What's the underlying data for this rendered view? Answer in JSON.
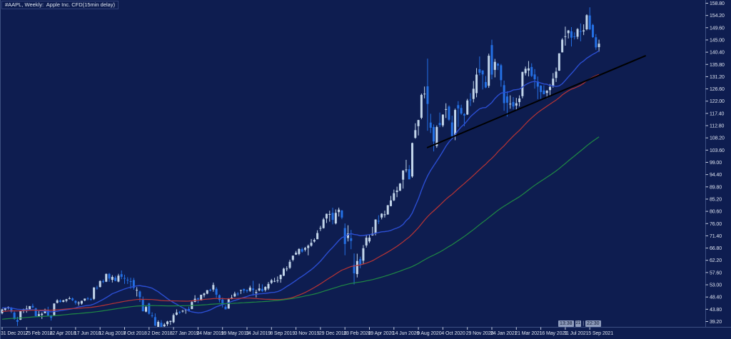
{
  "header": {
    "title": "#AAPL, Weekly:  Apple Inc. CFD(15min delay)"
  },
  "session_bar": {
    "start_time": "13:38",
    "icon": "21",
    "separator": "|",
    "end_time": "22:30"
  },
  "colors": {
    "background": "#0e1d50",
    "frame": "#3d4f82",
    "left_border": "#3c5080",
    "axis_text": "#dde3f0",
    "tick": "#c7cfe2",
    "candle_up": "#c2d5ea",
    "candle_down": "#2470e4",
    "ma_fast": "#2b4ed2",
    "ma_medium": "#b93434",
    "ma_slow": "#1f8a44",
    "trend_line": "#000000",
    "session_box_bg": "#8e9cbc",
    "session_box_text": "#0c1430"
  },
  "chart_data": {
    "type": "candlestick",
    "symbol": "#AAPL",
    "timeframe": "Weekly",
    "description": "Apple Inc. CFD(15min delay)",
    "grid": false,
    "legend_position": "none",
    "y_axis": {
      "side": "right",
      "max_label_value": 158.8,
      "min_label_value": 39.2,
      "step": 4.6,
      "labels": [
        "158.80",
        "154.20",
        "149.60",
        "145.00",
        "140.40",
        "135.80",
        "131.20",
        "126.60",
        "122.00",
        "117.40",
        "112.80",
        "108.20",
        "103.60",
        "99.00",
        "94.40",
        "89.80",
        "85.20",
        "80.60",
        "76.00",
        "71.40",
        "66.80",
        "62.20",
        "57.60",
        "53.00",
        "48.40",
        "43.80",
        "39.20"
      ]
    },
    "x_axis": {
      "side": "bottom",
      "label_every_weeks": 8,
      "labels": [
        "31 Dec 2017",
        "25 Feb 2018",
        "22 Apr 2018",
        "17 Jun 2018",
        "12 Aug 2018",
        "7 Oct 2018",
        "2 Dec 2018",
        "27 Jan 2019",
        "24 Mar 2019",
        "19 May 2019",
        "14 Jul 2019",
        "8 Sep 2019",
        "3 Nov 2019",
        "29 Dec 2019",
        "23 Feb 2020",
        "19 Apr 2020",
        "14 Jun 2020",
        "9 Aug 2020",
        "4 Oct 2020",
        "29 Nov 2020",
        "24 Jan 2021",
        "21 Mar 2021",
        "16 May 2021",
        "11 Jul 2021",
        "5 Sep 2021"
      ]
    },
    "candles_ohlc": [
      [
        42.31,
        43.98,
        41.93,
        43.75
      ],
      [
        43.59,
        44.53,
        43.28,
        44.27
      ],
      [
        44.47,
        44.85,
        43.77,
        44.62
      ],
      [
        44.33,
        44.62,
        42.36,
        42.88
      ],
      [
        42.54,
        43.0,
        39.85,
        40.13
      ],
      [
        39.78,
        40.97,
        37.56,
        39.1
      ],
      [
        39.88,
        43.34,
        39.76,
        43.24
      ],
      [
        43.27,
        44.02,
        42.38,
        43.88
      ],
      [
        44.0,
        45.15,
        42.51,
        44.05
      ],
      [
        43.8,
        45.0,
        43.65,
        44.99
      ],
      [
        45.07,
        45.88,
        44.24,
        44.51
      ],
      [
        44.11,
        44.4,
        41.12,
        41.23
      ],
      [
        41.29,
        43.09,
        41.08,
        41.95
      ],
      [
        41.66,
        42.61,
        40.16,
        42.1
      ],
      [
        42.32,
        44.03,
        42.25,
        43.68
      ],
      [
        43.6,
        44.74,
        41.35,
        41.43
      ],
      [
        41.46,
        41.73,
        39.56,
        40.58
      ],
      [
        41.6,
        46.06,
        41.32,
        45.96
      ],
      [
        46.21,
        47.59,
        46.0,
        47.15
      ],
      [
        47.09,
        47.51,
        46.31,
        46.58
      ],
      [
        46.6,
        47.36,
        46.41,
        47.15
      ],
      [
        47.0,
        47.71,
        46.44,
        47.56
      ],
      [
        47.73,
        48.55,
        47.52,
        47.92
      ],
      [
        47.88,
        48.22,
        46.89,
        47.2
      ],
      [
        46.95,
        47.19,
        45.57,
        46.23
      ],
      [
        46.28,
        46.79,
        45.18,
        46.28
      ],
      [
        45.95,
        47.02,
        45.54,
        46.99
      ],
      [
        47.11,
        47.85,
        46.81,
        47.8
      ],
      [
        47.89,
        48.41,
        47.17,
        47.87
      ],
      [
        47.66,
        48.09,
        47.02,
        47.57
      ],
      [
        47.7,
        52.1,
        47.32,
        51.99
      ],
      [
        51.9,
        52.67,
        51.17,
        51.88
      ],
      [
        52.16,
        54.66,
        52.02,
        54.4
      ],
      [
        54.3,
        54.97,
        53.62,
        54.04
      ],
      [
        54.16,
        57.22,
        54.03,
        57.09
      ],
      [
        57.1,
        57.42,
        54.12,
        55.33
      ],
      [
        54.86,
        56.61,
        53.86,
        55.96
      ],
      [
        55.68,
        56.37,
        54.31,
        54.47
      ],
      [
        54.2,
        57.12,
        53.95,
        56.44
      ],
      [
        56.99,
        58.37,
        55.11,
        56.0
      ],
      [
        55.55,
        56.81,
        53.33,
        55.53
      ],
      [
        54.92,
        55.84,
        53.3,
        54.83
      ],
      [
        54.33,
        55.66,
        51.52,
        54.1
      ],
      [
        54.77,
        55.59,
        51.14,
        51.87
      ],
      [
        51.07,
        52.09,
        48.61,
        51.11
      ],
      [
        50.48,
        50.85,
        46.56,
        48.38
      ],
      [
        47.59,
        48.58,
        42.96,
        43.07
      ],
      [
        42.91,
        45.25,
        42.65,
        44.65
      ],
      [
        45.97,
        46.24,
        41.82,
        42.12
      ],
      [
        41.5,
        42.66,
        40.68,
        41.37
      ],
      [
        40.85,
        42.25,
        37.41,
        37.68
      ],
      [
        37.04,
        39.63,
        36.65,
        39.06
      ],
      [
        38.72,
        39.71,
        35.5,
        36.98
      ],
      [
        37.39,
        38.63,
        36.66,
        38.07
      ],
      [
        38.22,
        39.47,
        37.51,
        39.21
      ],
      [
        39.06,
        39.53,
        37.93,
        39.44
      ],
      [
        38.95,
        42.25,
        38.53,
        41.63
      ],
      [
        41.74,
        43.77,
        41.48,
        42.6
      ],
      [
        42.77,
        43.19,
        42.08,
        42.6
      ],
      [
        42.95,
        43.57,
        42.57,
        43.24
      ],
      [
        43.57,
        43.95,
        42.12,
        43.74
      ],
      [
        43.92,
        44.78,
        42.88,
        43.23
      ],
      [
        43.87,
        46.83,
        43.84,
        46.53
      ],
      [
        46.55,
        49.08,
        46.45,
        47.76
      ],
      [
        47.88,
        48.22,
        46.15,
        47.49
      ],
      [
        47.1,
        49.27,
        47.1,
        49.25
      ],
      [
        49.11,
        50.03,
        48.28,
        49.72
      ],
      [
        49.65,
        51.04,
        49.45,
        50.97
      ],
      [
        51.1,
        51.49,
        50.53,
        51.08
      ],
      [
        51.22,
        53.83,
        50.41,
        52.94
      ],
      [
        51.47,
        52.12,
        48.15,
        49.29
      ],
      [
        49.09,
        49.39,
        46.35,
        47.25
      ],
      [
        47.46,
        48.12,
        44.45,
        45.64
      ],
      [
        44.73,
        45.37,
        43.75,
        43.77
      ],
      [
        44.06,
        47.98,
        44.02,
        47.54
      ],
      [
        47.95,
        49.2,
        47.57,
        48.19
      ],
      [
        48.63,
        50.39,
        48.4,
        49.69
      ],
      [
        49.67,
        50.25,
        48.82,
        49.48
      ],
      [
        50.79,
        51.11,
        49.54,
        51.06
      ],
      [
        51.45,
        51.53,
        49.88,
        50.83
      ],
      [
        51.02,
        51.27,
        50.04,
        50.65
      ],
      [
        50.77,
        52.66,
        50.34,
        51.94
      ],
      [
        51.61,
        54.51,
        48.92,
        51.01
      ],
      [
        49.9,
        51.18,
        48.24,
        50.25
      ],
      [
        50.87,
        53.41,
        50.55,
        51.63
      ],
      [
        51.47,
        53.19,
        50.25,
        50.66
      ],
      [
        51.03,
        52.44,
        50.44,
        52.19
      ],
      [
        51.61,
        54.05,
        51.06,
        53.32
      ],
      [
        53.71,
        55.2,
        53.26,
        54.69
      ],
      [
        54.43,
        55.63,
        54.0,
        54.43
      ],
      [
        54.64,
        56.15,
        53.78,
        54.72
      ],
      [
        55.13,
        56.87,
        53.78,
        56.75
      ],
      [
        56.41,
        59.41,
        56.26,
        59.05
      ],
      [
        58.96,
        59.94,
        58.08,
        59.1
      ],
      [
        59.38,
        62.44,
        58.94,
        61.65
      ],
      [
        62.38,
        64.01,
        61.81,
        63.96
      ],
      [
        64.33,
        65.72,
        64.21,
        65.04
      ],
      [
        64.57,
        66.72,
        64.09,
        66.44
      ],
      [
        66.39,
        67.0,
        65.09,
        65.45
      ],
      [
        66.2,
        67.24,
        65.52,
        66.81
      ],
      [
        66.82,
        68.14,
        64.07,
        67.68
      ],
      [
        67.7,
        70.2,
        67.32,
        68.79
      ],
      [
        69.25,
        70.44,
        68.86,
        69.86
      ],
      [
        70.13,
        73.49,
        70.13,
        72.45
      ],
      [
        74.06,
        75.14,
        73.19,
        74.36
      ],
      [
        74.29,
        78.17,
        74.13,
        77.58
      ],
      [
        77.91,
        79.75,
        76.22,
        79.68
      ],
      [
        79.3,
        80.85,
        76.72,
        79.58
      ],
      [
        80.06,
        81.96,
        75.72,
        77.38
      ],
      [
        76.07,
        81.31,
        75.69,
        80.01
      ],
      [
        80.32,
        82.0,
        78.65,
        81.24
      ],
      [
        80.88,
        81.14,
        77.63,
        78.26
      ],
      [
        74.32,
        76.04,
        64.09,
        68.34
      ],
      [
        70.57,
        75.36,
        69.28,
        72.26
      ],
      [
        70.5,
        73.63,
        66.36,
        69.49
      ],
      [
        60.49,
        64.77,
        53.15,
        57.31
      ],
      [
        57.02,
        64.67,
        55.76,
        61.94
      ],
      [
        62.69,
        63.57,
        59.22,
        60.35
      ],
      [
        62.06,
        67.93,
        60.7,
        66.73
      ],
      [
        67.78,
        71.76,
        66.97,
        70.7
      ],
      [
        69.3,
        71.74,
        68.71,
        70.74
      ],
      [
        71.56,
        74.75,
        71.46,
        72.27
      ],
      [
        72.48,
        77.59,
        71.58,
        77.53
      ],
      [
        77.03,
        79.12,
        75.8,
        76.93
      ],
      [
        78.29,
        79.88,
        77.58,
        79.72
      ],
      [
        79.17,
        80.86,
        78.27,
        79.49
      ],
      [
        79.44,
        83.0,
        79.3,
        82.88
      ],
      [
        82.56,
        86.4,
        82.46,
        84.7
      ],
      [
        84.72,
        88.77,
        84.44,
        87.43
      ],
      [
        87.85,
        89.86,
        85.92,
        88.41
      ],
      [
        88.31,
        91.25,
        88.29,
        91.03
      ],
      [
        92.5,
        96.06,
        89.14,
        95.92
      ],
      [
        96.26,
        99.96,
        95.26,
        96.33
      ],
      [
        96.42,
        97.97,
        92.82,
        92.61
      ],
      [
        93.71,
        106.42,
        93.25,
        106.26
      ],
      [
        108.2,
        113.68,
        107.89,
        111.11
      ],
      [
        112.6,
        115.0,
        109.11,
        114.91
      ],
      [
        115.75,
        124.87,
        115.21,
        124.37
      ],
      [
        124.7,
        127.49,
        123.05,
        124.81
      ],
      [
        127.58,
        137.98,
        110.89,
        120.96
      ],
      [
        113.95,
        117.26,
        110.02,
        112.0
      ],
      [
        112.26,
        113.24,
        103.1,
        106.84
      ],
      [
        105.17,
        112.86,
        104.47,
        112.28
      ],
      [
        113.79,
        117.72,
        112.22,
        113.02
      ],
      [
        112.89,
        117.0,
        112.25,
        116.97
      ],
      [
        118.72,
        121.2,
        115.66,
        119.02
      ],
      [
        119.96,
        120.42,
        114.59,
        115.04
      ],
      [
        114.01,
        116.55,
        107.72,
        108.86
      ],
      [
        109.11,
        119.2,
        107.32,
        118.69
      ],
      [
        120.5,
        121.99,
        112.35,
        119.26
      ],
      [
        119.44,
        120.67,
        116.87,
        117.34
      ],
      [
        117.18,
        117.49,
        112.59,
        116.59
      ],
      [
        116.97,
        122.86,
        116.81,
        122.25
      ],
      [
        122.6,
        125.0,
        120.15,
        122.41
      ],
      [
        122.82,
        129.58,
        121.54,
        126.66
      ],
      [
        125.02,
        134.41,
        123.45,
        131.97
      ],
      [
        133.99,
        138.79,
        131.72,
        132.69
      ],
      [
        133.52,
        133.61,
        126.38,
        132.05
      ],
      [
        129.19,
        131.45,
        126.86,
        127.14
      ],
      [
        127.78,
        139.85,
        127.0,
        139.07
      ],
      [
        143.07,
        145.09,
        130.21,
        131.96
      ],
      [
        133.75,
        137.88,
        130.93,
        136.76
      ],
      [
        136.03,
        136.39,
        133.69,
        135.37
      ],
      [
        135.49,
        136.01,
        127.41,
        129.87
      ],
      [
        128.01,
        129.72,
        118.39,
        121.26
      ],
      [
        123.75,
        125.71,
        116.21,
        121.42
      ],
      [
        120.93,
        124.18,
        119.16,
        121.03
      ],
      [
        121.69,
        123.52,
        118.92,
        119.99
      ],
      [
        120.35,
        123.23,
        118.86,
        121.21
      ],
      [
        121.65,
        124.18,
        120.01,
        123.0
      ],
      [
        123.87,
        133.04,
        123.07,
        133.0
      ],
      [
        132.52,
        135.0,
        131.66,
        134.16
      ],
      [
        133.51,
        137.07,
        131.3,
        134.32
      ],
      [
        134.83,
        136.22,
        131.07,
        131.46
      ],
      [
        132.04,
        134.07,
        126.7,
        130.21
      ],
      [
        129.41,
        131.26,
        122.77,
        127.45
      ],
      [
        127.82,
        128.0,
        122.86,
        125.43
      ],
      [
        126.01,
        127.94,
        124.52,
        124.61
      ],
      [
        125.08,
        126.16,
        123.13,
        125.89
      ],
      [
        126.17,
        128.46,
        123.94,
        127.35
      ],
      [
        127.82,
        132.55,
        127.07,
        130.46
      ],
      [
        130.71,
        134.64,
        129.21,
        133.11
      ],
      [
        133.46,
        140.0,
        133.35,
        139.96
      ],
      [
        140.34,
        145.65,
        140.3,
        145.11
      ],
      [
        146.21,
        150.0,
        142.86,
        146.39
      ],
      [
        147.55,
        148.72,
        145.56,
        148.56
      ],
      [
        148.27,
        149.83,
        142.54,
        145.86
      ],
      [
        146.36,
        147.84,
        145.18,
        146.14
      ],
      [
        146.2,
        149.44,
        145.3,
        149.1
      ],
      [
        148.31,
        151.19,
        144.5,
        148.19
      ],
      [
        148.19,
        150.86,
        146.83,
        148.6
      ],
      [
        149.0,
        154.63,
        148.61,
        154.3
      ],
      [
        154.2,
        157.26,
        148.7,
        148.97
      ],
      [
        150.63,
        151.07,
        145.76,
        146.06
      ],
      [
        146.0,
        147.2,
        141.3,
        142.2
      ],
      [
        142.3,
        145.1,
        140.6,
        143.6
      ]
    ],
    "ma_warmup_closes": [
      34.0,
      34.2,
      34.1,
      34.4,
      34.5,
      34.3,
      34.6,
      34.8,
      35.0,
      34.9,
      35.2,
      35.4,
      35.3,
      35.6,
      35.8,
      35.7,
      36.0,
      36.2,
      36.1,
      36.4,
      36.5,
      36.3,
      36.6,
      36.8,
      37.0,
      36.9,
      37.2,
      37.4,
      37.3,
      37.6,
      37.8,
      37.7,
      38.0,
      38.2,
      38.1,
      38.4,
      38.5,
      38.3,
      38.6,
      38.8,
      39.0,
      38.9,
      39.2,
      39.4,
      39.3,
      39.6,
      39.8,
      39.7,
      40.0,
      40.2,
      40.1,
      40.4,
      40.5,
      40.3,
      40.6,
      40.8,
      41.0,
      40.9,
      41.2,
      41.4,
      41.3,
      41.6,
      41.8,
      41.7,
      42.0,
      42.2,
      42.1,
      42.4,
      42.5,
      42.3,
      42.6,
      42.8,
      43.0,
      42.9,
      43.2,
      43.4,
      43.3,
      43.6,
      43.8,
      43.7,
      44.0,
      44.2,
      44.1,
      44.4,
      44.5,
      44.3,
      44.6,
      44.8,
      44.7,
      45.0,
      44.9,
      44.7,
      44.8,
      44.6,
      44.5,
      44.3,
      44.2,
      44.0,
      43.9,
      42.3
    ],
    "moving_averages": [
      {
        "name": "fast",
        "period": 20,
        "color": "#2b4ed2",
        "width": 1.4
      },
      {
        "name": "medium",
        "period": 50,
        "color": "#b93434",
        "width": 1.2
      },
      {
        "name": "slow",
        "period": 100,
        "color": "#1f8a44",
        "width": 1.2
      }
    ],
    "trend_line": {
      "start_week": 138.8,
      "start_price": 104.5,
      "end_week": 210.3,
      "end_price": 139.1,
      "color": "#000000",
      "width": 2
    }
  }
}
